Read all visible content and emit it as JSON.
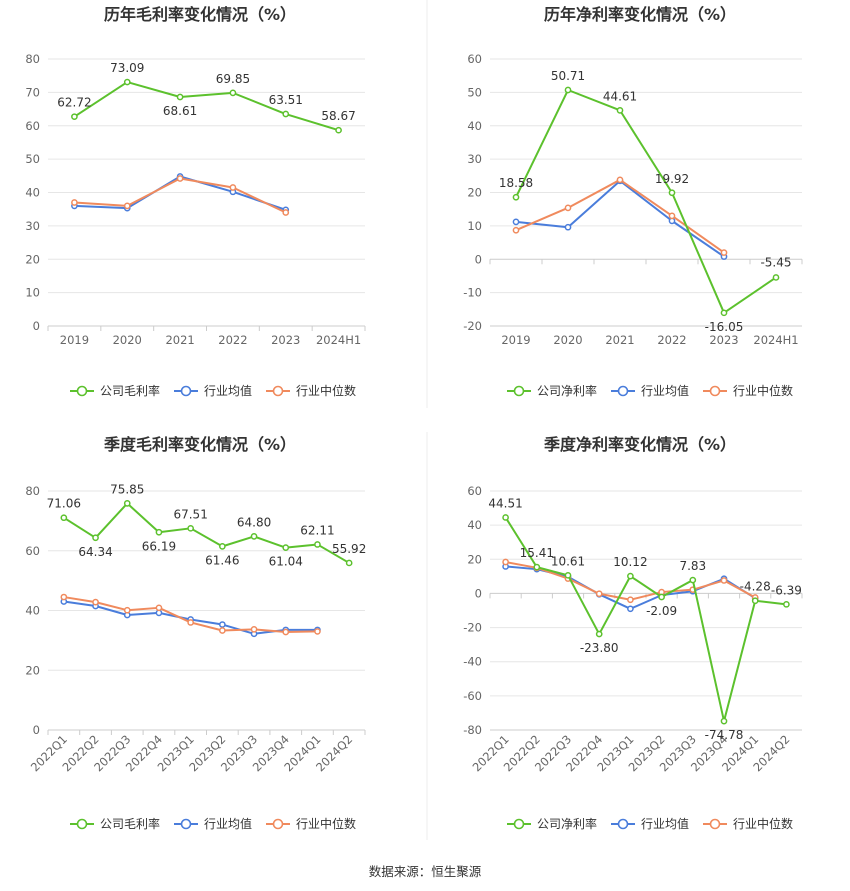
{
  "source": "数据来源：恒生聚源",
  "colors": {
    "company": "#5cc12d",
    "avg": "#4a7ddb",
    "median": "#f08a5d",
    "grid": "#e6e6e6",
    "axis": "#cccccc",
    "divider": "#eeeeee"
  },
  "chart_data": [
    {
      "type": "line",
      "title": "历年毛利率变化情况（%）",
      "categories": [
        "2019",
        "2020",
        "2021",
        "2022",
        "2023",
        "2024H1"
      ],
      "ylim": [
        0,
        80
      ],
      "yticks": [
        0,
        10,
        20,
        30,
        40,
        50,
        60,
        70,
        80
      ],
      "grid": true,
      "legend_position": "bottom",
      "series": [
        {
          "name": "公司毛利率",
          "color": "#5cc12d",
          "values": [
            62.72,
            73.09,
            68.61,
            69.85,
            63.51,
            58.67
          ],
          "labels": [
            "62.72",
            "73.09",
            "68.61",
            "69.85",
            "63.51",
            "58.67"
          ]
        },
        {
          "name": "行业均值",
          "color": "#4a7ddb",
          "values": [
            36.0,
            35.3,
            44.8,
            40.2,
            34.8,
            null
          ]
        },
        {
          "name": "行业中位数",
          "color": "#f08a5d",
          "values": [
            37.0,
            36.0,
            44.2,
            41.5,
            34.0,
            null
          ]
        }
      ]
    },
    {
      "type": "line",
      "title": "历年净利率变化情况（%）",
      "categories": [
        "2019",
        "2020",
        "2021",
        "2022",
        "2023",
        "2024H1"
      ],
      "ylim": [
        -20,
        60
      ],
      "yticks": [
        -20,
        -10,
        0,
        10,
        20,
        30,
        40,
        50,
        60
      ],
      "grid": true,
      "legend_position": "bottom",
      "series": [
        {
          "name": "公司净利率",
          "color": "#5cc12d",
          "values": [
            18.58,
            50.71,
            44.61,
            19.92,
            -16.05,
            -5.45
          ],
          "labels": [
            "18.58",
            "50.71",
            "44.61",
            "19.92",
            "-16.05",
            "-5.45"
          ]
        },
        {
          "name": "行业均值",
          "color": "#4a7ddb",
          "values": [
            11.2,
            9.6,
            23.5,
            11.5,
            0.8,
            null
          ]
        },
        {
          "name": "行业中位数",
          "color": "#f08a5d",
          "values": [
            8.7,
            15.4,
            23.8,
            13.0,
            2.0,
            null
          ]
        }
      ]
    },
    {
      "type": "line",
      "title": "季度毛利率变化情况（%）",
      "categories": [
        "2022Q1",
        "2022Q2",
        "2022Q3",
        "2022Q4",
        "2023Q1",
        "2023Q2",
        "2023Q3",
        "2023Q4",
        "2024Q1",
        "2024Q2"
      ],
      "ylim": [
        0,
        80
      ],
      "yticks": [
        0,
        20,
        40,
        60,
        80
      ],
      "grid": true,
      "legend_position": "bottom",
      "series": [
        {
          "name": "公司毛利率",
          "color": "#5cc12d",
          "values": [
            71.06,
            64.34,
            75.85,
            66.19,
            67.51,
            61.46,
            64.8,
            61.04,
            62.11,
            55.92
          ],
          "labels": [
            "71.06",
            "64.34",
            "75.85",
            "66.19",
            "67.51",
            "61.46",
            "64.80",
            "61.04",
            "62.11",
            "55.92"
          ]
        },
        {
          "name": "行业均值",
          "color": "#4a7ddb",
          "values": [
            43.0,
            41.5,
            38.5,
            39.2,
            37.0,
            35.3,
            32.2,
            33.5,
            33.5,
            null
          ]
        },
        {
          "name": "行业中位数",
          "color": "#f08a5d",
          "values": [
            44.5,
            42.8,
            40.1,
            40.9,
            36.0,
            33.3,
            33.7,
            32.8,
            33.0,
            null
          ]
        }
      ]
    },
    {
      "type": "line",
      "title": "季度净利率变化情况（%）",
      "categories": [
        "2022Q1",
        "2022Q2",
        "2022Q3",
        "2022Q4",
        "2023Q1",
        "2023Q2",
        "2023Q3",
        "2023Q4",
        "2024Q1",
        "2024Q2"
      ],
      "ylim": [
        -80,
        60
      ],
      "yticks": [
        -80,
        -60,
        -40,
        -20,
        0,
        20,
        40,
        60
      ],
      "grid": true,
      "legend_position": "bottom",
      "series": [
        {
          "name": "公司净利率",
          "color": "#5cc12d",
          "values": [
            44.51,
            15.41,
            10.61,
            -23.8,
            10.12,
            -2.09,
            7.83,
            -74.78,
            -4.28,
            -6.39
          ],
          "labels": [
            "44.51",
            "15.41",
            "10.61",
            "-23.80",
            "10.12",
            "-2.09",
            "7.83",
            "-74.78",
            "-4.28",
            "-6.39"
          ]
        },
        {
          "name": "行业均值",
          "color": "#4a7ddb",
          "values": [
            15.8,
            14.2,
            9.8,
            -0.5,
            -9.0,
            -1.0,
            1.3,
            8.6,
            -2.8,
            null
          ]
        },
        {
          "name": "行业中位数",
          "color": "#f08a5d",
          "values": [
            18.4,
            15.0,
            8.7,
            -0.2,
            -3.7,
            0.8,
            2.2,
            7.6,
            -2.4,
            null
          ]
        }
      ]
    }
  ]
}
